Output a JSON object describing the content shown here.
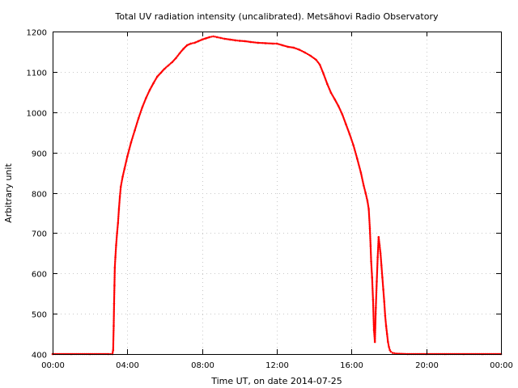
{
  "chart_data": {
    "type": "scatter",
    "title": "Total UV radiation intensity (uncalibrated). Metsähovi Radio Observatory",
    "xlabel": "Time UT, on date 2014-07-25",
    "ylabel": "Arbitrary unit",
    "x_unit": "hours UT",
    "xlim": [
      0,
      24
    ],
    "ylim": [
      400,
      1200
    ],
    "grid": true,
    "legend": "none",
    "marker_color": "#ff0000",
    "x_ticks": [
      {
        "value": 0,
        "label": "00:00"
      },
      {
        "value": 4,
        "label": "04:00"
      },
      {
        "value": 8,
        "label": "08:00"
      },
      {
        "value": 12,
        "label": "12:00"
      },
      {
        "value": 16,
        "label": "16:00"
      },
      {
        "value": 20,
        "label": "20:00"
      },
      {
        "value": 24,
        "label": "00:00"
      }
    ],
    "y_ticks": [
      {
        "value": 400,
        "label": "400"
      },
      {
        "value": 500,
        "label": "500"
      },
      {
        "value": 600,
        "label": "600"
      },
      {
        "value": 700,
        "label": "700"
      },
      {
        "value": 800,
        "label": "800"
      },
      {
        "value": 900,
        "label": "900"
      },
      {
        "value": 1000,
        "label": "1000"
      },
      {
        "value": 1100,
        "label": "1100"
      },
      {
        "value": 1200,
        "label": "1200"
      }
    ],
    "series": [
      {
        "points": [
          [
            0.0,
            400
          ],
          [
            1.0,
            400
          ],
          [
            2.0,
            400
          ],
          [
            3.0,
            400
          ],
          [
            3.2,
            400
          ],
          [
            3.24,
            410
          ],
          [
            3.27,
            470
          ],
          [
            3.29,
            525
          ],
          [
            3.31,
            570
          ],
          [
            3.33,
            615
          ],
          [
            3.36,
            640
          ],
          [
            3.4,
            670
          ],
          [
            3.45,
            700
          ],
          [
            3.5,
            725
          ],
          [
            3.55,
            760
          ],
          [
            3.6,
            790
          ],
          [
            3.65,
            815
          ],
          [
            3.75,
            840
          ],
          [
            3.85,
            860
          ],
          [
            4.0,
            890
          ],
          [
            4.2,
            925
          ],
          [
            4.4,
            955
          ],
          [
            4.6,
            985
          ],
          [
            4.8,
            1012
          ],
          [
            5.0,
            1035
          ],
          [
            5.2,
            1055
          ],
          [
            5.4,
            1072
          ],
          [
            5.6,
            1088
          ],
          [
            5.8,
            1098
          ],
          [
            6.0,
            1108
          ],
          [
            6.2,
            1116
          ],
          [
            6.4,
            1124
          ],
          [
            6.6,
            1134
          ],
          [
            6.8,
            1146
          ],
          [
            7.0,
            1157
          ],
          [
            7.2,
            1166
          ],
          [
            7.4,
            1170
          ],
          [
            7.6,
            1172
          ],
          [
            7.8,
            1176
          ],
          [
            8.0,
            1180
          ],
          [
            8.2,
            1183
          ],
          [
            8.4,
            1186
          ],
          [
            8.6,
            1188
          ],
          [
            8.8,
            1186
          ],
          [
            9.0,
            1184
          ],
          [
            9.2,
            1182
          ],
          [
            9.5,
            1180
          ],
          [
            9.8,
            1178
          ],
          [
            10.0,
            1177
          ],
          [
            10.3,
            1176
          ],
          [
            10.6,
            1174
          ],
          [
            11.0,
            1172
          ],
          [
            11.4,
            1171
          ],
          [
            11.8,
            1170
          ],
          [
            12.0,
            1170
          ],
          [
            12.3,
            1166
          ],
          [
            12.6,
            1162
          ],
          [
            12.9,
            1160
          ],
          [
            13.2,
            1155
          ],
          [
            13.5,
            1148
          ],
          [
            13.8,
            1140
          ],
          [
            14.1,
            1130
          ],
          [
            14.3,
            1118
          ],
          [
            14.5,
            1095
          ],
          [
            14.7,
            1070
          ],
          [
            14.9,
            1048
          ],
          [
            15.1,
            1032
          ],
          [
            15.3,
            1015
          ],
          [
            15.5,
            995
          ],
          [
            15.7,
            970
          ],
          [
            15.9,
            945
          ],
          [
            16.1,
            918
          ],
          [
            16.3,
            885
          ],
          [
            16.5,
            850
          ],
          [
            16.65,
            818
          ],
          [
            16.75,
            800
          ],
          [
            16.85,
            780
          ],
          [
            16.92,
            760
          ],
          [
            16.98,
            712
          ],
          [
            17.02,
            668
          ],
          [
            17.05,
            630
          ],
          [
            17.1,
            590
          ],
          [
            17.15,
            535
          ],
          [
            17.2,
            460
          ],
          [
            17.25,
            430
          ],
          [
            17.3,
            515
          ],
          [
            17.35,
            580
          ],
          [
            17.4,
            640
          ],
          [
            17.45,
            690
          ],
          [
            17.5,
            670
          ],
          [
            17.55,
            650
          ],
          [
            17.6,
            620
          ],
          [
            17.65,
            590
          ],
          [
            17.7,
            560
          ],
          [
            17.75,
            530
          ],
          [
            17.8,
            495
          ],
          [
            17.85,
            470
          ],
          [
            17.9,
            450
          ],
          [
            17.95,
            430
          ],
          [
            18.0,
            418
          ],
          [
            18.05,
            410
          ],
          [
            18.1,
            406
          ],
          [
            18.2,
            403
          ],
          [
            18.4,
            401
          ],
          [
            19.0,
            400
          ],
          [
            20.0,
            400
          ],
          [
            21.0,
            400
          ],
          [
            22.0,
            400
          ],
          [
            23.0,
            400
          ],
          [
            24.0,
            400
          ]
        ]
      }
    ]
  }
}
